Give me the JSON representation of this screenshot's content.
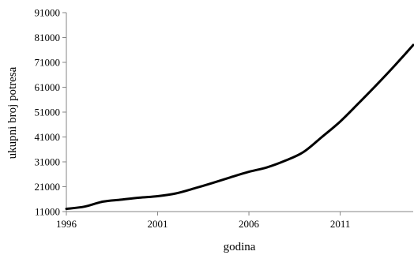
{
  "chart_data": {
    "type": "line",
    "xlabel": "godina",
    "ylabel": "ukupni broj potresa",
    "xlim": [
      1996,
      2015
    ],
    "ylim": [
      11000,
      91000
    ],
    "x_ticks": [
      1996,
      2001,
      2006,
      2011
    ],
    "y_ticks": [
      11000,
      21000,
      31000,
      41000,
      51000,
      61000,
      71000,
      81000,
      91000
    ],
    "grid": false,
    "legend": "none",
    "line_color": "#000000",
    "series": [
      {
        "x": [
          1996,
          1997,
          1998,
          1999,
          2000,
          2001,
          2002,
          2003,
          2004,
          2005,
          2006,
          2007,
          2008,
          2009,
          2010,
          2011,
          2012,
          2013,
          2014,
          2015
        ],
        "y": [
          12100,
          13000,
          15000,
          15800,
          16600,
          17200,
          18300,
          20300,
          22500,
          24800,
          27000,
          28800,
          31500,
          35000,
          41000,
          47200,
          54500,
          62000,
          69800,
          78000
        ]
      }
    ]
  }
}
